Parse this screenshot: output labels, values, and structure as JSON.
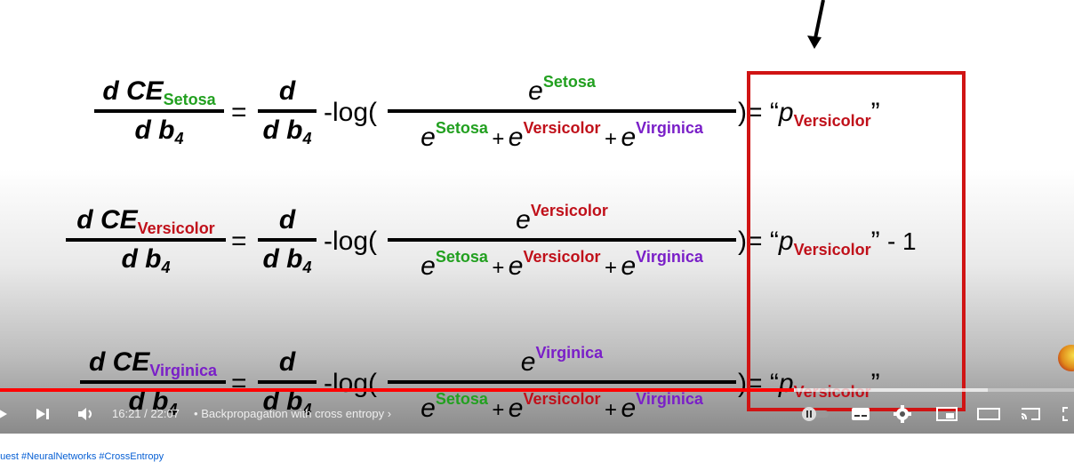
{
  "equations": [
    {
      "lhs_num_prefix": "d CE",
      "lhs_num_sub": "Setosa",
      "lhs_num_color": "#22a020",
      "lhs_den": "d b",
      "lhs_den_sub": "4",
      "eq": "=",
      "op_num": "d",
      "op_den": "d b",
      "op_den_sub": "4",
      "log": "-log(",
      "frac_num_base": "e",
      "frac_num_sup": "Setosa",
      "frac_num_color": "#22a020",
      "den_terms": [
        {
          "base": "e",
          "sup": "Setosa"
        },
        {
          "plus": "+",
          "base": "e",
          "sup": "Versicolor"
        },
        {
          "plus": "+",
          "base": "e",
          "sup": "Virginica"
        }
      ],
      "close": ")",
      "result_eq": "=",
      "open_quote": "“",
      "p": "p",
      "p_sub": "Versicolor",
      "close_quote": "”",
      "tail": ""
    },
    {
      "lhs_num_prefix": "d CE",
      "lhs_num_sub": "Versicolor",
      "lhs_num_color": "#c0101a",
      "lhs_den": "d b",
      "lhs_den_sub": "4",
      "eq": "=",
      "op_num": "d",
      "op_den": "d b",
      "op_den_sub": "4",
      "log": "-log(",
      "frac_num_base": "e",
      "frac_num_sup": "Versicolor",
      "frac_num_color": "#c0101a",
      "den_terms": [
        {
          "base": "e",
          "sup": "Setosa"
        },
        {
          "plus": "+",
          "base": "e",
          "sup": "Versicolor"
        },
        {
          "plus": "+",
          "base": "e",
          "sup": "Virginica"
        }
      ],
      "close": ")",
      "result_eq": "=",
      "open_quote": "“",
      "p": "p",
      "p_sub": "Versicolor",
      "close_quote": "”",
      "tail": "- 1"
    },
    {
      "lhs_num_prefix": "d CE",
      "lhs_num_sub": "Virginica",
      "lhs_num_color": "#7a1fc8",
      "lhs_den": "d b",
      "lhs_den_sub": "4",
      "eq": "=",
      "op_num": "d",
      "op_den": "d b",
      "op_den_sub": "4",
      "log": "-log(",
      "frac_num_base": "e",
      "frac_num_sup": "Virginica",
      "frac_num_color": "#7a1fc8",
      "den_terms": [
        {
          "base": "e",
          "sup": "Setosa"
        },
        {
          "plus": "+",
          "base": "e",
          "sup": "Versicolor"
        },
        {
          "plus": "+",
          "base": "e",
          "sup": "Virginica"
        }
      ],
      "close": ")",
      "result_eq": "=",
      "open_quote": "“",
      "p": "p",
      "p_sub": "Versicolor",
      "close_quote": "”",
      "tail": ""
    }
  ],
  "colors": {
    "setosa": "#22a020",
    "versicolor": "#c0101a",
    "virginica": "#7a1fc8",
    "highlight_box": "#d01414",
    "progress_played": "#ff0000"
  },
  "player": {
    "time_display": "16:21 / 22:07",
    "separator": "•",
    "chapter_title": "Backpropagation with cross entropy",
    "chapter_chevron": "›",
    "progress_played_fraction": 0.739,
    "progress_buffered_fraction": 0.92,
    "icons": [
      "play-icon",
      "next-icon",
      "volume-icon",
      "autoplay-toggle-icon",
      "subtitles-icon",
      "settings-icon",
      "miniplayer-icon",
      "theater-mode-icon",
      "cast-icon",
      "fullscreen-icon"
    ]
  },
  "below_video": {
    "hashtags": "quest #NeuralNetworks #CrossEntropy"
  }
}
